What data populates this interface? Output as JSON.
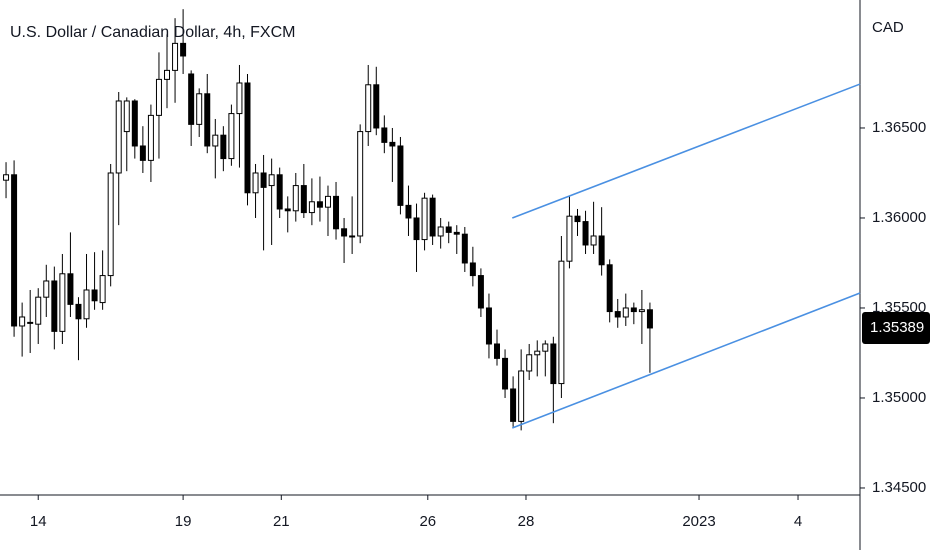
{
  "chart_data": {
    "type": "candlestick",
    "title": "U.S. Dollar / Canadian Dollar, 4h, FXCM",
    "y_label": "CAD",
    "colors": {
      "up": "#ffffff",
      "down": "#000000",
      "outline": "#000000",
      "channel": "#4a90e2"
    },
    "open": [
      1.3621,
      1.3624,
      1.354,
      1.3542,
      1.3541,
      1.3556,
      1.3565,
      1.3537,
      1.3569,
      1.3552,
      1.3544,
      1.356,
      1.3553,
      1.3568,
      1.3625,
      1.3648,
      1.3665,
      1.364,
      1.3632,
      1.3657,
      1.3677,
      1.3682,
      1.3697,
      1.368,
      1.3652,
      1.3669,
      1.364,
      1.3646,
      1.3633,
      1.3658,
      1.3675,
      1.3614,
      1.3625,
      1.3618,
      1.3624,
      1.3605,
      1.3604,
      1.3618,
      1.3603,
      1.3609,
      1.3606,
      1.3612,
      1.3594,
      1.359,
      1.359,
      1.3648,
      1.3674,
      1.365,
      1.3642,
      1.364,
      1.3607,
      1.36,
      1.3588,
      1.3611,
      1.359,
      1.3595,
      1.3592,
      1.3591,
      1.3575,
      1.3568,
      1.355,
      1.353,
      1.3522,
      1.3505,
      1.3487,
      1.3515,
      1.3524,
      1.3526,
      1.353,
      1.3508,
      1.3576,
      1.3601,
      1.3598,
      1.3585,
      1.359,
      1.3574,
      1.3548,
      1.3545,
      1.355,
      1.3548,
      1.3549
    ],
    "high": [
      1.3631,
      1.3632,
      1.3553,
      1.356,
      1.3561,
      1.3574,
      1.3573,
      1.358,
      1.3592,
      1.3556,
      1.358,
      1.3581,
      1.3582,
      1.363,
      1.367,
      1.3667,
      1.3666,
      1.3651,
      1.3663,
      1.3692,
      1.3702,
      1.3711,
      1.3716,
      1.3682,
      1.3672,
      1.368,
      1.3655,
      1.3651,
      1.3663,
      1.3685,
      1.368,
      1.363,
      1.3635,
      1.3633,
      1.3628,
      1.3612,
      1.3625,
      1.363,
      1.3622,
      1.3623,
      1.3618,
      1.362,
      1.36,
      1.3612,
      1.3652,
      1.3685,
      1.3684,
      1.3657,
      1.365,
      1.3645,
      1.3618,
      1.3608,
      1.3614,
      1.3613,
      1.36,
      1.3598,
      1.3596,
      1.3595,
      1.3584,
      1.3572,
      1.3558,
      1.3538,
      1.3527,
      1.3512,
      1.3527,
      1.353,
      1.3532,
      1.3532,
      1.3534,
      1.359,
      1.3612,
      1.3605,
      1.3604,
      1.3609,
      1.3606,
      1.3577,
      1.3555,
      1.3558,
      1.3553,
      1.356,
      1.3553
    ],
    "low": [
      1.3611,
      1.3534,
      1.3523,
      1.3525,
      1.353,
      1.3545,
      1.3527,
      1.353,
      1.3545,
      1.3521,
      1.3539,
      1.3549,
      1.3549,
      1.3562,
      1.3596,
      1.3626,
      1.3633,
      1.3625,
      1.362,
      1.3633,
      1.3661,
      1.3664,
      1.368,
      1.364,
      1.3645,
      1.3636,
      1.3622,
      1.3626,
      1.3629,
      1.3628,
      1.3607,
      1.36,
      1.3582,
      1.3585,
      1.36,
      1.3592,
      1.3598,
      1.36,
      1.3596,
      1.3598,
      1.359,
      1.3588,
      1.3575,
      1.358,
      1.3586,
      1.364,
      1.3646,
      1.3636,
      1.362,
      1.3602,
      1.359,
      1.357,
      1.3582,
      1.3585,
      1.3583,
      1.3586,
      1.358,
      1.357,
      1.3562,
      1.3545,
      1.3522,
      1.3518,
      1.35,
      1.3484,
      1.3482,
      1.351,
      1.3512,
      1.3512,
      1.3486,
      1.35,
      1.3572,
      1.359,
      1.358,
      1.358,
      1.3568,
      1.3542,
      1.3539,
      1.354,
      1.3541,
      1.353,
      1.3514
    ],
    "close": [
      1.3624,
      1.354,
      1.3545,
      1.3542,
      1.3556,
      1.3565,
      1.3537,
      1.3569,
      1.3552,
      1.3544,
      1.356,
      1.3554,
      1.3568,
      1.3625,
      1.3665,
      1.3665,
      1.364,
      1.3632,
      1.3657,
      1.3677,
      1.3682,
      1.3697,
      1.369,
      1.3652,
      1.3669,
      1.364,
      1.3646,
      1.3633,
      1.3658,
      1.3675,
      1.3614,
      1.3625,
      1.3617,
      1.3624,
      1.3605,
      1.3604,
      1.3618,
      1.3603,
      1.3609,
      1.3606,
      1.3612,
      1.3594,
      1.359,
      1.359,
      1.3648,
      1.3674,
      1.365,
      1.3642,
      1.364,
      1.3607,
      1.36,
      1.3588,
      1.3611,
      1.359,
      1.3595,
      1.3592,
      1.3591,
      1.3575,
      1.3568,
      1.355,
      1.353,
      1.3522,
      1.3505,
      1.3487,
      1.3515,
      1.3524,
      1.3526,
      1.353,
      1.3508,
      1.3576,
      1.3601,
      1.3598,
      1.3585,
      1.359,
      1.3574,
      1.3548,
      1.3545,
      1.355,
      1.3548,
      1.3549,
      1.35389
    ],
    "last_price": {
      "value": 1.35389,
      "label": "1.35389"
    },
    "channel": [
      {
        "x": [
          62.9,
          106.1
        ],
        "y": [
          1.36,
          1.36744
        ]
      },
      {
        "x": [
          62.9,
          106.1
        ],
        "y": [
          1.34833,
          1.35583
        ]
      }
    ],
    "xlim": [
      -0.75,
      106.1
    ],
    "xticks": [
      {
        "value": 4.0,
        "label": "14"
      },
      {
        "value": 22.0,
        "label": "19"
      },
      {
        "value": 34.2,
        "label": "21"
      },
      {
        "value": 52.4,
        "label": "26"
      },
      {
        "value": 64.6,
        "label": "28"
      },
      {
        "value": 86.1,
        "label": "2023"
      },
      {
        "value": 98.4,
        "label": "4"
      }
    ],
    "ylim": [
      1.34461,
      1.37211
    ],
    "yticks": [
      {
        "value": 1.345,
        "label": "1.34500"
      },
      {
        "value": 1.35,
        "label": "1.35000"
      },
      {
        "value": 1.355,
        "label": "1.35500"
      },
      {
        "value": 1.36,
        "label": "1.36000"
      },
      {
        "value": 1.365,
        "label": "1.36500"
      }
    ]
  }
}
